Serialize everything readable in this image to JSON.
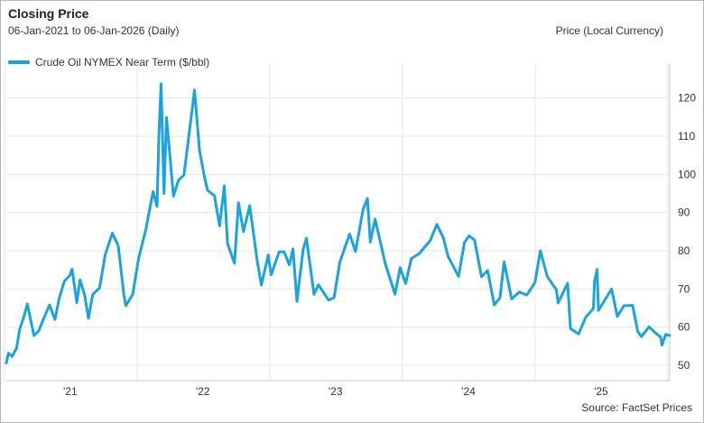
{
  "chart_data": {
    "type": "line",
    "title": "Closing Price",
    "subtitle": "06-Jan-2021  to 06-Jan-2026  (Daily)",
    "ylabel": "Price (Local Currency)",
    "source": "Source: FactSet Prices",
    "legend_position": "top-left",
    "grid": true,
    "color": "#1aa3e0",
    "xlim": [
      "2021-01-06",
      "2026-01-06"
    ],
    "ylim": [
      46,
      127
    ],
    "y_ticks": [
      50,
      60,
      70,
      80,
      90,
      100,
      110,
      120
    ],
    "x_tick_labels": [
      {
        "label": "'21",
        "date": "2021-07-01"
      },
      {
        "label": "'22",
        "date": "2022-07-01"
      },
      {
        "label": "'23",
        "date": "2023-07-01"
      },
      {
        "label": "'24",
        "date": "2024-07-01"
      },
      {
        "label": "'25",
        "date": "2025-07-01"
      }
    ],
    "x_gridlines": [
      "2021-01-01",
      "2022-01-01",
      "2023-01-01",
      "2024-01-01",
      "2025-01-01",
      "2026-01-01"
    ],
    "series": [
      {
        "name": "Crude Oil NYMEX Near Term ($/bbl)",
        "points": [
          [
            "2021-01-06",
            50.6
          ],
          [
            "2021-01-12",
            53.2
          ],
          [
            "2021-01-22",
            52.3
          ],
          [
            "2021-02-03",
            54.5
          ],
          [
            "2021-02-12",
            59.5
          ],
          [
            "2021-02-25",
            63.2
          ],
          [
            "2021-03-05",
            66.1
          ],
          [
            "2021-03-23",
            57.8
          ],
          [
            "2021-04-05",
            59.0
          ],
          [
            "2021-04-20",
            62.5
          ],
          [
            "2021-05-05",
            65.8
          ],
          [
            "2021-05-20",
            62.0
          ],
          [
            "2021-06-01",
            67.7
          ],
          [
            "2021-06-15",
            72.1
          ],
          [
            "2021-06-30",
            73.5
          ],
          [
            "2021-07-06",
            75.2
          ],
          [
            "2021-07-19",
            66.4
          ],
          [
            "2021-07-28",
            72.4
          ],
          [
            "2021-08-10",
            68.3
          ],
          [
            "2021-08-20",
            62.3
          ],
          [
            "2021-09-01",
            68.6
          ],
          [
            "2021-09-20",
            70.3
          ],
          [
            "2021-10-05",
            78.9
          ],
          [
            "2021-10-25",
            84.6
          ],
          [
            "2021-11-10",
            81.3
          ],
          [
            "2021-11-26",
            68.2
          ],
          [
            "2021-12-01",
            65.6
          ],
          [
            "2021-12-20",
            68.6
          ],
          [
            "2022-01-05",
            77.9
          ],
          [
            "2022-01-25",
            85.6
          ],
          [
            "2022-02-14",
            95.5
          ],
          [
            "2022-02-25",
            91.6
          ],
          [
            "2022-03-02",
            110.6
          ],
          [
            "2022-03-08",
            123.7
          ],
          [
            "2022-03-16",
            95.0
          ],
          [
            "2022-03-23",
            114.9
          ],
          [
            "2022-04-11",
            94.3
          ],
          [
            "2022-04-25",
            98.5
          ],
          [
            "2022-05-10",
            99.8
          ],
          [
            "2022-05-30",
            115.1
          ],
          [
            "2022-06-08",
            122.1
          ],
          [
            "2022-06-22",
            106.2
          ],
          [
            "2022-07-05",
            99.5
          ],
          [
            "2022-07-14",
            95.8
          ],
          [
            "2022-08-02",
            94.4
          ],
          [
            "2022-08-16",
            86.5
          ],
          [
            "2022-08-29",
            97.0
          ],
          [
            "2022-09-07",
            81.9
          ],
          [
            "2022-09-26",
            76.7
          ],
          [
            "2022-10-07",
            92.6
          ],
          [
            "2022-10-21",
            85.0
          ],
          [
            "2022-11-07",
            91.8
          ],
          [
            "2022-11-28",
            77.2
          ],
          [
            "2022-12-09",
            71.0
          ],
          [
            "2022-12-28",
            78.9
          ],
          [
            "2023-01-05",
            73.7
          ],
          [
            "2023-01-27",
            79.7
          ],
          [
            "2023-02-10",
            79.7
          ],
          [
            "2023-02-24",
            76.3
          ],
          [
            "2023-03-06",
            80.5
          ],
          [
            "2023-03-17",
            66.7
          ],
          [
            "2023-04-03",
            80.4
          ],
          [
            "2023-04-12",
            83.3
          ],
          [
            "2023-05-03",
            68.6
          ],
          [
            "2023-05-15",
            71.1
          ],
          [
            "2023-06-12",
            67.1
          ],
          [
            "2023-06-27",
            67.7
          ],
          [
            "2023-07-13",
            77.0
          ],
          [
            "2023-08-09",
            84.4
          ],
          [
            "2023-08-25",
            79.8
          ],
          [
            "2023-09-15",
            90.8
          ],
          [
            "2023-09-27",
            93.7
          ],
          [
            "2023-10-05",
            82.3
          ],
          [
            "2023-10-18",
            88.3
          ],
          [
            "2023-11-15",
            76.7
          ],
          [
            "2023-12-12",
            68.6
          ],
          [
            "2023-12-26",
            75.6
          ],
          [
            "2024-01-10",
            71.4
          ],
          [
            "2024-01-26",
            78.0
          ],
          [
            "2024-02-16",
            79.2
          ],
          [
            "2024-03-18",
            82.7
          ],
          [
            "2024-04-05",
            86.9
          ],
          [
            "2024-04-23",
            83.4
          ],
          [
            "2024-05-06",
            78.5
          ],
          [
            "2024-06-04",
            73.3
          ],
          [
            "2024-06-20",
            82.2
          ],
          [
            "2024-07-03",
            83.9
          ],
          [
            "2024-07-18",
            82.8
          ],
          [
            "2024-08-06",
            73.2
          ],
          [
            "2024-08-23",
            74.8
          ],
          [
            "2024-09-10",
            65.8
          ],
          [
            "2024-09-26",
            67.7
          ],
          [
            "2024-10-07",
            77.1
          ],
          [
            "2024-10-28",
            67.4
          ],
          [
            "2024-11-18",
            69.2
          ],
          [
            "2024-12-09",
            68.4
          ],
          [
            "2024-12-31",
            71.7
          ],
          [
            "2025-01-15",
            80.0
          ],
          [
            "2025-02-03",
            73.2
          ],
          [
            "2025-02-28",
            69.8
          ],
          [
            "2025-03-05",
            66.3
          ],
          [
            "2025-03-31",
            71.5
          ],
          [
            "2025-04-08",
            59.6
          ],
          [
            "2025-04-30",
            58.2
          ],
          [
            "2025-05-20",
            62.6
          ],
          [
            "2025-06-10",
            64.9
          ],
          [
            "2025-06-13",
            72.0
          ],
          [
            "2025-06-20",
            75.1
          ],
          [
            "2025-06-24",
            64.4
          ],
          [
            "2025-07-30",
            70.0
          ],
          [
            "2025-08-15",
            62.8
          ],
          [
            "2025-09-02",
            65.6
          ],
          [
            "2025-09-26",
            65.7
          ],
          [
            "2025-10-10",
            58.9
          ],
          [
            "2025-10-20",
            57.5
          ],
          [
            "2025-11-10",
            60.1
          ],
          [
            "2025-11-24",
            58.8
          ],
          [
            "2025-12-12",
            57.4
          ],
          [
            "2025-12-16",
            55.3
          ],
          [
            "2025-12-26",
            58.1
          ],
          [
            "2026-01-06",
            57.8
          ]
        ]
      }
    ]
  }
}
